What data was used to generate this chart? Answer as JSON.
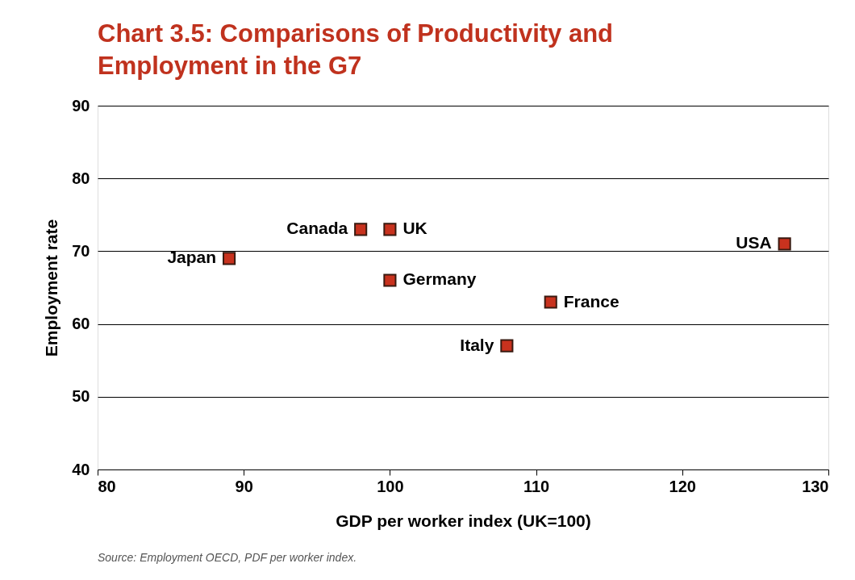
{
  "chart_data": {
    "type": "scatter",
    "title": [
      "Chart 3.5: Comparisons of Productivity and",
      "Employment in the G7"
    ],
    "xlabel": "GDP per worker index (UK=100)",
    "ylabel": "Employment rate",
    "x": [
      98,
      100,
      89,
      100,
      111,
      108,
      127
    ],
    "series": [
      {
        "color": "#c8321e",
        "values": [
          73,
          73,
          69,
          66,
          63,
          57,
          71
        ]
      }
    ],
    "xlim": [
      80,
      130
    ],
    "xticks": [
      80,
      90,
      100,
      110,
      120,
      130
    ],
    "ylim": [
      40,
      90
    ],
    "yticks": [
      40,
      50,
      60,
      70,
      80,
      90
    ],
    "grid": "y",
    "marker": "square",
    "annotations": [
      {
        "text": "Canada",
        "x": 98,
        "y": 73
      },
      {
        "text": "UK",
        "x": 100,
        "y": 73
      },
      {
        "text": "Japan",
        "x": 89,
        "y": 69
      },
      {
        "text": "Germany",
        "x": 100,
        "y": 66
      },
      {
        "text": "France",
        "x": 111,
        "y": 63
      },
      {
        "text": "Italy",
        "x": 108,
        "y": 57
      },
      {
        "text": "USA",
        "x": 127,
        "y": 71
      },
      "Source: Employment OECD, PDF per worker index."
    ]
  }
}
